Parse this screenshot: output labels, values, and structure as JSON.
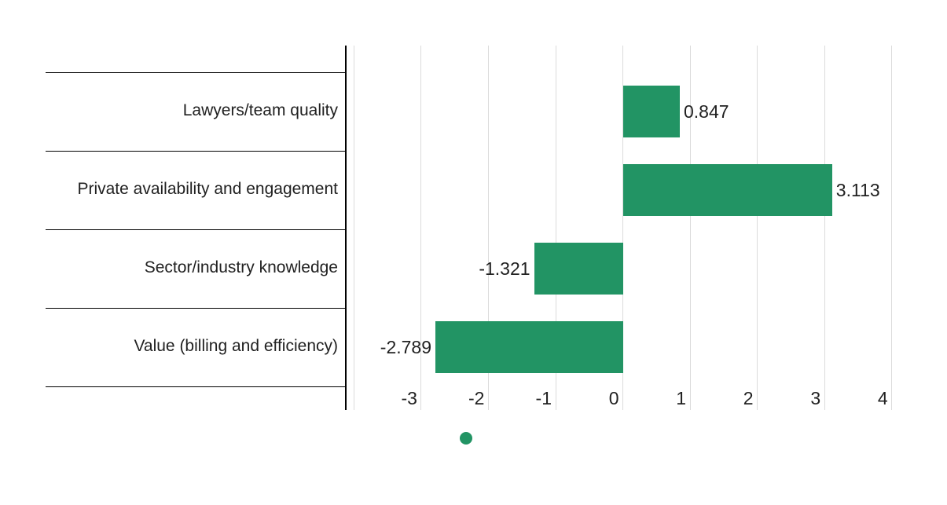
{
  "chart_data": {
    "type": "bar",
    "orientation": "horizontal",
    "title": "",
    "xlabel": "",
    "ylabel": "",
    "categories": [
      "Lawyers/team quality",
      "Private availability and engagement",
      "Sector/industry knowledge",
      "Value (billing and efficiency)"
    ],
    "values": [
      0.847,
      3.113,
      -1.321,
      -2.789
    ],
    "value_labels": [
      "0.847",
      "3.113",
      "-1.321",
      "-2.789"
    ],
    "series_color": "#229464",
    "text_color": "#212121",
    "gridline_color": "#dcdcdc",
    "axis_color": "#000000",
    "grid": true,
    "x_axis": {
      "min": -4.11,
      "max": 4.53,
      "gridline_values": [
        -4,
        -3,
        -2,
        -1,
        0,
        1,
        2,
        3,
        4
      ],
      "tick_labels": [
        "-3",
        "-2",
        "-1",
        "0",
        "1",
        "2",
        "3",
        "4"
      ],
      "tick_values": [
        -3,
        -2,
        -1,
        0,
        1,
        2,
        3,
        4
      ]
    },
    "legend": {
      "position": "bottom",
      "marker_color": "#229464",
      "label": ""
    }
  }
}
